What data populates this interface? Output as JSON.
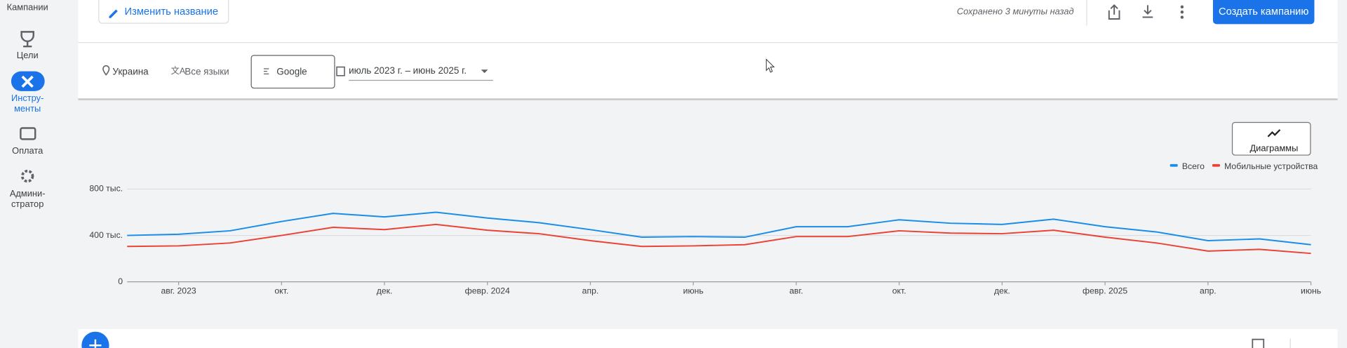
{
  "sidebar": {
    "top_label": "Кампании",
    "items": [
      {
        "lines": [
          "Цели"
        ]
      },
      {
        "lines": [
          "Инстру-",
          "менты"
        ]
      },
      {
        "lines": [
          "Оплата"
        ]
      },
      {
        "lines": [
          "Админи-",
          "стратор"
        ]
      }
    ]
  },
  "toolbar": {
    "rename_button": "Изменить название",
    "saved_status": "Сохранено 3 минуты назад",
    "create_button": "Создать кампанию"
  },
  "filters": {
    "location": "Украина",
    "language": "Все языки",
    "network": "Google",
    "date_range": "июль 2023 г. – июнь 2025 г."
  },
  "charts_button": "Диаграммы",
  "chart_data": {
    "type": "line",
    "categories": [
      null,
      "авг. 2023",
      null,
      "окт.",
      null,
      "дек.",
      null,
      "февр. 2024",
      null,
      "апр.",
      null,
      "июнь",
      null,
      "авг.",
      null,
      "окт.",
      null,
      "дек.",
      null,
      "февр. 2025",
      null,
      "апр.",
      null,
      "июнь"
    ],
    "series": [
      {
        "name": "Всего",
        "color": "#1a8de9",
        "values": [
          400000,
          410000,
          440000,
          520000,
          590000,
          560000,
          600000,
          550000,
          510000,
          450000,
          385000,
          390000,
          385000,
          475000,
          475000,
          535000,
          505000,
          495000,
          540000,
          475000,
          430000,
          355000,
          370000,
          320000
        ]
      },
      {
        "name": "Мобильные устройства",
        "color": "#ea4335",
        "values": [
          305000,
          310000,
          335000,
          400000,
          470000,
          450000,
          495000,
          445000,
          415000,
          355000,
          305000,
          310000,
          320000,
          390000,
          390000,
          440000,
          420000,
          415000,
          445000,
          385000,
          335000,
          265000,
          280000,
          245000
        ]
      }
    ],
    "ylim": [
      0,
      800000
    ],
    "yticks": [
      0,
      {
        "value": 400000,
        "label": "400 тыс."
      },
      {
        "value": 800000,
        "label": "800 тыс."
      }
    ],
    "grid": true,
    "legend": "top-right"
  }
}
